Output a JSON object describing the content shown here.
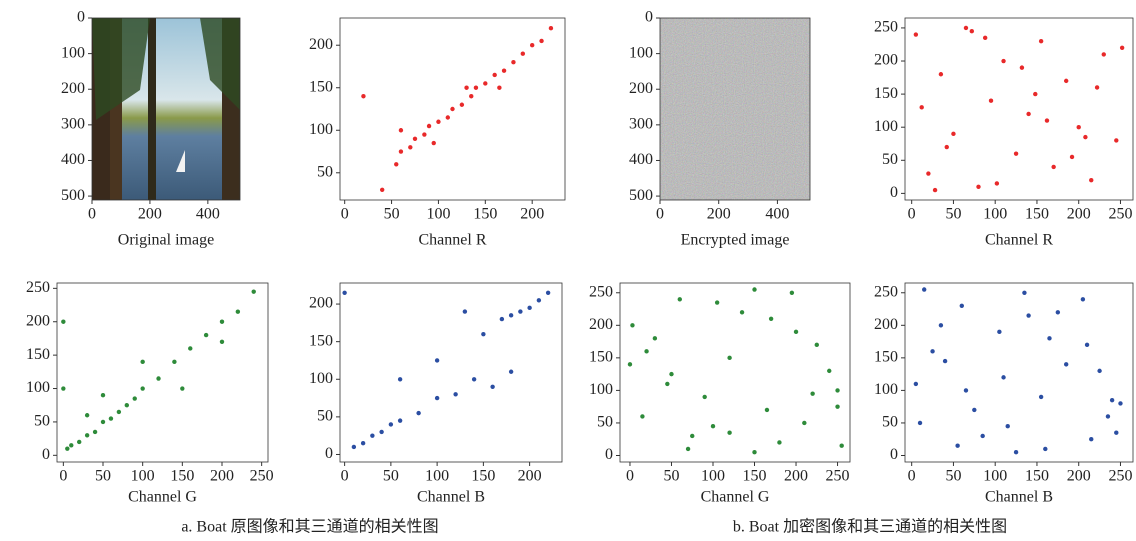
{
  "chart_data": [
    {
      "type": "image",
      "x_label": "Original image",
      "xlim": [
        0,
        511
      ],
      "ylim": [
        511,
        0
      ],
      "xticks": [
        0,
        200,
        400
      ],
      "yticks": [
        0,
        100,
        200,
        300,
        400,
        500
      ]
    },
    {
      "type": "scatter",
      "x_label": "Channel R",
      "xlim": [
        -5,
        235
      ],
      "ylim": [
        18,
        232
      ],
      "xticks": [
        0,
        50,
        100,
        150,
        200
      ],
      "yticks": [
        50,
        100,
        150,
        200
      ],
      "x": [
        20,
        40,
        55,
        60,
        70,
        75,
        85,
        90,
        100,
        110,
        115,
        125,
        135,
        140,
        150,
        160,
        170,
        180,
        190,
        200,
        210,
        220,
        95,
        130,
        165,
        60
      ],
      "series": [
        {
          "color": "#e8292a",
          "values": [
            140,
            30,
            60,
            75,
            80,
            90,
            95,
            105,
            110,
            115,
            125,
            130,
            140,
            150,
            155,
            165,
            170,
            180,
            190,
            200,
            205,
            220,
            85,
            150,
            150,
            100
          ]
        }
      ]
    },
    {
      "type": "image",
      "x_label": "Encrypted image",
      "xlim": [
        0,
        511
      ],
      "ylim": [
        511,
        0
      ],
      "xticks": [
        0,
        200,
        400
      ],
      "yticks": [
        0,
        100,
        200,
        300,
        400,
        500
      ]
    },
    {
      "type": "scatter",
      "x_label": "Channel R",
      "xlim": [
        -8,
        265
      ],
      "ylim": [
        -10,
        265
      ],
      "xticks": [
        0,
        50,
        100,
        150,
        200,
        250
      ],
      "yticks": [
        0,
        50,
        100,
        150,
        200,
        250
      ],
      "x": [
        5,
        20,
        35,
        50,
        65,
        80,
        95,
        110,
        125,
        140,
        155,
        170,
        185,
        200,
        215,
        230,
        245,
        12,
        42,
        72,
        102,
        132,
        162,
        192,
        222,
        252,
        28,
        88,
        148,
        208
      ],
      "series": [
        {
          "color": "#e8292a",
          "values": [
            240,
            30,
            180,
            90,
            250,
            10,
            140,
            200,
            60,
            120,
            230,
            40,
            170,
            100,
            20,
            210,
            80,
            130,
            70,
            245,
            15,
            190,
            110,
            55,
            160,
            220,
            5,
            235,
            150,
            85
          ]
        }
      ]
    },
    {
      "type": "scatter",
      "x_label": "Channel G",
      "xlim": [
        -8,
        258
      ],
      "ylim": [
        -10,
        258
      ],
      "xticks": [
        0,
        50,
        100,
        150,
        200,
        250
      ],
      "yticks": [
        0,
        50,
        100,
        150,
        200,
        250
      ],
      "x": [
        0,
        0,
        5,
        10,
        20,
        30,
        40,
        50,
        60,
        70,
        80,
        90,
        100,
        120,
        140,
        160,
        180,
        200,
        220,
        240,
        150,
        50,
        100,
        200,
        30
      ],
      "series": [
        {
          "color": "#2e8b3a",
          "values": [
            200,
            100,
            10,
            15,
            20,
            30,
            35,
            50,
            55,
            65,
            75,
            85,
            100,
            115,
            140,
            160,
            180,
            200,
            215,
            245,
            100,
            90,
            140,
            170,
            60
          ]
        }
      ]
    },
    {
      "type": "scatter",
      "x_label": "Channel B",
      "xlim": [
        -5,
        235
      ],
      "ylim": [
        -10,
        228
      ],
      "xticks": [
        0,
        50,
        100,
        150,
        200
      ],
      "yticks": [
        0,
        50,
        100,
        150,
        200
      ],
      "x": [
        0,
        10,
        20,
        30,
        40,
        50,
        60,
        80,
        100,
        120,
        140,
        160,
        170,
        180,
        190,
        200,
        210,
        220,
        100,
        150,
        60,
        180,
        130
      ],
      "series": [
        {
          "color": "#2b4ea2",
          "values": [
            215,
            10,
            15,
            25,
            30,
            40,
            45,
            55,
            75,
            80,
            100,
            90,
            180,
            185,
            190,
            195,
            205,
            215,
            125,
            160,
            100,
            110,
            190
          ]
        }
      ]
    },
    {
      "type": "scatter",
      "x_label": "Channel G",
      "xlim": [
        -12,
        265
      ],
      "ylim": [
        -10,
        265
      ],
      "xticks": [
        0,
        50,
        100,
        150,
        200,
        250
      ],
      "yticks": [
        0,
        50,
        100,
        150,
        200,
        250
      ],
      "x": [
        250,
        3,
        180,
        60,
        120,
        210,
        30,
        150,
        90,
        240,
        15,
        195,
        75,
        135,
        225,
        45,
        165,
        105,
        255,
        0,
        100,
        200,
        50,
        150,
        250,
        20,
        70,
        170,
        220,
        120
      ],
      "series": [
        {
          "color": "#2e8b3a",
          "values": [
            100,
            200,
            20,
            240,
            150,
            50,
            180,
            5,
            90,
            130,
            60,
            250,
            30,
            220,
            170,
            110,
            70,
            235,
            15,
            140,
            45,
            190,
            125,
            255,
            75,
            160,
            10,
            210,
            95,
            35
          ]
        }
      ]
    },
    {
      "type": "scatter",
      "x_label": "Channel B",
      "xlim": [
        -8,
        265
      ],
      "ylim": [
        -10,
        265
      ],
      "xticks": [
        0,
        50,
        100,
        150,
        200,
        250
      ],
      "yticks": [
        0,
        50,
        100,
        150,
        200,
        250
      ],
      "x": [
        10,
        60,
        110,
        160,
        210,
        250,
        35,
        85,
        135,
        185,
        235,
        5,
        55,
        105,
        155,
        205,
        245,
        25,
        75,
        125,
        175,
        225,
        15,
        65,
        115,
        165,
        215,
        40,
        140,
        240
      ],
      "series": [
        {
          "color": "#2b4ea2",
          "values": [
            50,
            230,
            120,
            10,
            170,
            80,
            200,
            30,
            250,
            140,
            60,
            110,
            15,
            190,
            90,
            240,
            35,
            160,
            70,
            5,
            220,
            130,
            255,
            100,
            45,
            180,
            25,
            145,
            215,
            85
          ]
        }
      ]
    }
  ],
  "captions": [
    "a. Boat 原图像和其三通道的相关性图",
    "b. Boat 加密图像和其三通道的相关性图"
  ]
}
